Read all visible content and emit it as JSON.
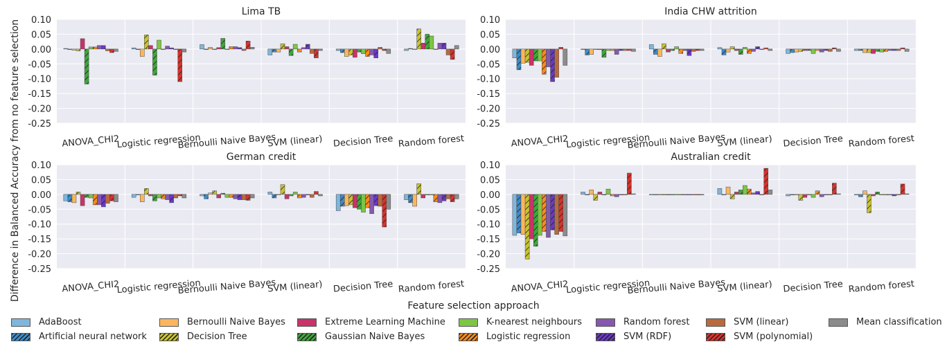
{
  "chart_data": {
    "type": "bar",
    "ylabel": "Difference in Balanced Accuracy from no feature selection",
    "xlabel": "Feature selection approach",
    "ylim": [
      -0.25,
      0.1
    ],
    "yticks": [
      "0.10",
      "0.05",
      "0.00",
      "-0.05",
      "-0.10",
      "-0.15",
      "-0.20",
      "-0.25"
    ],
    "grid": true,
    "legend_position": "bottom",
    "categories": [
      "ANOVA_CHI2",
      "Logistic regression",
      "Bernoulli Naive Bayes",
      "SVM (linear)",
      "Decision Tree",
      "Random forest"
    ],
    "series_styles": [
      {
        "name": "AdaBoost",
        "color": "#7fb6dc",
        "hatch": false
      },
      {
        "name": "Artificial neural network",
        "color": "#3a8ccb",
        "hatch": true
      },
      {
        "name": "Bernoulli Naive Bayes",
        "color": "#fcb55c",
        "hatch": false
      },
      {
        "name": "Decision Tree",
        "color": "#c8c330",
        "hatch": true
      },
      {
        "name": "Extreme Learning Machine",
        "color": "#c8336a",
        "hatch": false
      },
      {
        "name": "Gaussian Naive Bayes",
        "color": "#3ea63b",
        "hatch": true
      },
      {
        "name": "K-nearest neighbours",
        "color": "#7cc644",
        "hatch": false
      },
      {
        "name": "Logistic regression",
        "color": "#f98a1c",
        "hatch": true
      },
      {
        "name": "Random forest",
        "color": "#8659ae",
        "hatch": false
      },
      {
        "name": "SVM (RDF)",
        "color": "#6a38c8",
        "hatch": true
      },
      {
        "name": "SVM (linear)",
        "color": "#b86a3e",
        "hatch": false
      },
      {
        "name": "SVM (polynomial)",
        "color": "#d9322c",
        "hatch": true
      },
      {
        "name": "Mean classification",
        "color": "#8c8c8c",
        "hatch": false
      }
    ],
    "panels": [
      {
        "title": "Lima TB",
        "values": [
          [
            0.002,
            0.0,
            -0.004,
            -0.006,
            0.035,
            -0.118,
            0.007,
            0.007,
            0.012,
            0.012,
            -0.006,
            -0.012,
            -0.008
          ],
          [
            0.004,
            0.0,
            -0.025,
            0.048,
            0.012,
            -0.088,
            0.03,
            0.0,
            0.01,
            0.004,
            0.0,
            -0.11,
            -0.01
          ],
          [
            0.015,
            0.0,
            0.006,
            0.0,
            0.005,
            0.036,
            0.0,
            0.008,
            0.008,
            0.005,
            -0.005,
            0.027,
            0.006
          ],
          [
            -0.02,
            -0.01,
            -0.01,
            0.018,
            0.008,
            -0.022,
            0.016,
            -0.01,
            0.005,
            0.016,
            -0.015,
            -0.03,
            -0.005
          ],
          [
            -0.005,
            -0.012,
            -0.025,
            -0.02,
            -0.028,
            -0.01,
            -0.016,
            -0.025,
            -0.02,
            -0.03,
            0.006,
            -0.005,
            -0.015
          ],
          [
            -0.005,
            0.002,
            0.0,
            0.068,
            0.02,
            0.05,
            0.044,
            0.0,
            0.02,
            0.02,
            -0.02,
            -0.035,
            0.012
          ]
        ]
      },
      {
        "title": "India CHW attrition",
        "values": [
          [
            -0.03,
            -0.07,
            -0.048,
            -0.045,
            -0.055,
            -0.04,
            -0.04,
            -0.085,
            -0.06,
            -0.11,
            -0.095,
            0.006,
            -0.055
          ],
          [
            0.0,
            -0.02,
            -0.018,
            0.0,
            0.0,
            -0.028,
            -0.005,
            -0.005,
            -0.018,
            -0.005,
            -0.005,
            -0.005,
            -0.008
          ],
          [
            0.015,
            -0.018,
            -0.025,
            0.018,
            -0.01,
            -0.005,
            0.008,
            -0.015,
            -0.005,
            -0.022,
            -0.008,
            -0.005,
            -0.005
          ],
          [
            0.005,
            -0.02,
            -0.01,
            0.008,
            -0.005,
            -0.018,
            0.006,
            -0.015,
            -0.008,
            0.008,
            0.0,
            0.004,
            -0.005
          ],
          [
            -0.015,
            -0.012,
            -0.01,
            -0.008,
            -0.005,
            -0.005,
            -0.015,
            -0.005,
            -0.01,
            -0.005,
            -0.008,
            0.004,
            -0.008
          ],
          [
            -0.005,
            -0.005,
            -0.012,
            -0.012,
            -0.015,
            -0.008,
            -0.01,
            -0.008,
            -0.005,
            -0.005,
            -0.005,
            0.004,
            -0.008
          ]
        ]
      },
      {
        "title": "German credit",
        "values": [
          [
            -0.022,
            -0.025,
            -0.028,
            0.008,
            -0.038,
            -0.01,
            -0.012,
            -0.035,
            -0.035,
            -0.042,
            -0.03,
            -0.022,
            -0.025
          ],
          [
            -0.01,
            0.0,
            -0.025,
            0.02,
            -0.005,
            -0.022,
            -0.012,
            -0.015,
            -0.018,
            -0.028,
            -0.012,
            -0.005,
            -0.012
          ],
          [
            -0.005,
            -0.015,
            0.005,
            0.012,
            -0.012,
            0.004,
            -0.01,
            -0.01,
            -0.015,
            -0.018,
            -0.018,
            -0.02,
            -0.012
          ],
          [
            0.008,
            -0.012,
            0.0,
            0.033,
            -0.015,
            -0.005,
            0.008,
            -0.012,
            -0.01,
            0.0,
            -0.01,
            0.01,
            -0.005
          ],
          [
            -0.055,
            -0.04,
            -0.038,
            -0.035,
            -0.045,
            -0.05,
            -0.06,
            -0.045,
            -0.065,
            -0.038,
            -0.04,
            -0.11,
            -0.05
          ],
          [
            -0.018,
            -0.028,
            -0.04,
            0.036,
            -0.012,
            0.0,
            0.0,
            -0.025,
            -0.028,
            -0.022,
            -0.015,
            -0.025,
            -0.015
          ]
        ]
      },
      {
        "title": "Australian credit",
        "values": [
          [
            -0.138,
            -0.13,
            -0.135,
            -0.218,
            -0.15,
            -0.175,
            -0.138,
            -0.125,
            -0.145,
            -0.12,
            -0.135,
            -0.125,
            -0.14
          ],
          [
            0.008,
            0.0,
            0.015,
            -0.02,
            0.008,
            0.0,
            0.018,
            -0.005,
            -0.008,
            0.0,
            0.0,
            0.072,
            0.002
          ],
          [
            0.0,
            0.0,
            0.0,
            0.0,
            0.0,
            0.0,
            0.0,
            0.0,
            0.0,
            0.0,
            0.0,
            0.0,
            0.0
          ],
          [
            0.02,
            0.0,
            0.025,
            -0.015,
            0.008,
            0.015,
            0.03,
            0.018,
            0.005,
            0.01,
            0.0,
            0.088,
            0.015
          ],
          [
            -0.005,
            0.0,
            0.0,
            -0.02,
            -0.01,
            0.0,
            -0.01,
            0.012,
            -0.008,
            0.0,
            0.0,
            0.038,
            0.002
          ],
          [
            0.0,
            -0.008,
            0.012,
            -0.062,
            -0.005,
            0.008,
            0.0,
            0.0,
            0.0,
            -0.005,
            0.0,
            0.035,
            0.002
          ]
        ]
      }
    ]
  }
}
